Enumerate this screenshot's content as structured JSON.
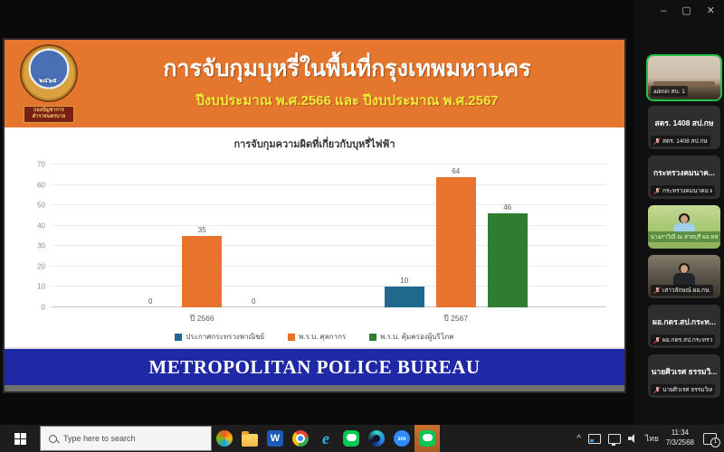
{
  "window": {
    "minimize_label": "–",
    "maximize_label": "▢",
    "close_label": "✕"
  },
  "slide": {
    "title": "การจับกุมบุหรี่ในพื้นที่กรุงเทพมหานคร",
    "subtitle": "ปีงบประมาณ พ.ศ.2566 และ ปีงบประมาณ พ.ศ.2567",
    "logo": {
      "year_text": "๒๔๖๕",
      "ribbon_line1": "กองบัญชาการ",
      "ribbon_line2": "ตำรวจนครบาล"
    },
    "footer": "METROPOLITAN POLICE BUREAU",
    "colors": {
      "header_bg": "#e5762d",
      "subtitle_text": "#f2e83a",
      "footer_bg": "#2029a5"
    }
  },
  "chart_data": {
    "type": "bar",
    "title": "การจับกุมความผิดที่เกี่ยวกับบุหรี่ไฟฟ้า",
    "categories": [
      "ปี 2566",
      "ปี 2567"
    ],
    "series": [
      {
        "name": "ประกาศกระทรวงพาณิชย์",
        "color": "#20688c",
        "values": [
          0,
          10
        ]
      },
      {
        "name": "พ.ร.บ. ศุลกากร",
        "color": "#e8732c",
        "values": [
          35,
          64
        ]
      },
      {
        "name": "พ.ร.บ. คุ้มครองผู้บริโภค",
        "color": "#2e7d32",
        "values": [
          0,
          46
        ]
      }
    ],
    "xlabel": "",
    "ylabel": "",
    "ylim": [
      0,
      70
    ],
    "yticks": [
      0,
      10,
      20,
      30,
      40,
      50,
      60,
      70
    ],
    "grid": true,
    "legend_position": "bottom",
    "value_labels": true
  },
  "sidebar": {
    "tiles": [
      {
        "type": "video-room",
        "label": "admin สบ. 1",
        "muted": false,
        "active_speaker": true
      },
      {
        "type": "name-card",
        "big_text": "สตร. 1408 สป.กษ",
        "label": "สตร. 1408 สป.กษ",
        "muted": true
      },
      {
        "type": "name-card",
        "big_text": "กระทรวงคมนาค...",
        "label": "กระทรวงคมนาคม ผอ.",
        "muted": true
      },
      {
        "type": "video-green",
        "banner": "นางภาวิณี ณ สายบุรี ผอ.ทส",
        "muted": false
      },
      {
        "type": "video-desk",
        "label": "เสาวลักษณ์ ผอ.กษ.",
        "muted": true
      },
      {
        "type": "name-card",
        "big_text": "ผอ.กตร.สป.กระท...",
        "label": "ผอ.กตร.สป.กระทรวงวัฒน...",
        "muted": true
      },
      {
        "type": "name-card",
        "big_text": "นายศิวเรศ ธรรมวิ...",
        "label": "นายศิวเรศ ธรรมวิเศษ ผอ...",
        "muted": true
      }
    ]
  },
  "taskbar": {
    "search_placeholder": "Type here to search",
    "apps": [
      "copilot",
      "file-explorer",
      "word",
      "chrome",
      "internet-explorer",
      "line",
      "webex",
      "zoom",
      "line-active"
    ],
    "word_glyph": "W",
    "ie_glyph": "e",
    "zoom_glyph": "zm",
    "tray": {
      "language": "ไทย",
      "time": "11:34",
      "date": "7/3/2568",
      "notification_count": "1"
    }
  }
}
